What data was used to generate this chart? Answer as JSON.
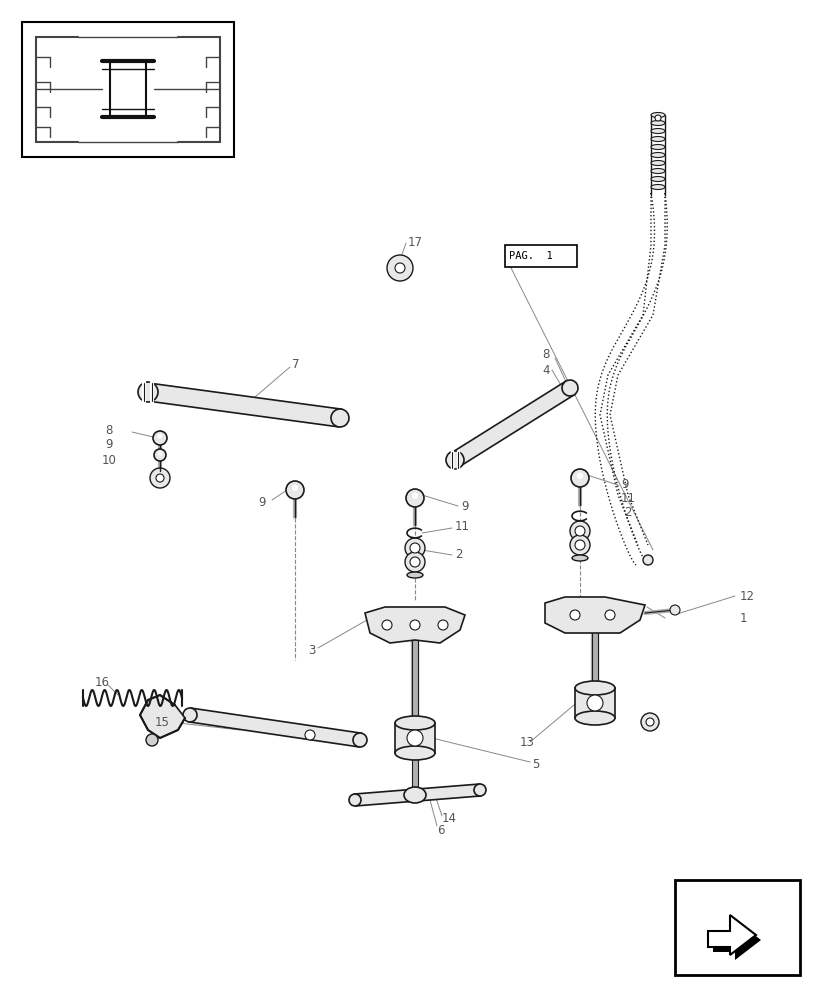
{
  "bg_color": "#ffffff",
  "lc": "#1a1a1a",
  "fc_light": "#e8e8e8",
  "fc_mid": "#d0d0d0",
  "fc_dark": "#b0b0b0",
  "label_color": "#555555",
  "leader_color": "#888888",
  "dashed_color": "#888888"
}
